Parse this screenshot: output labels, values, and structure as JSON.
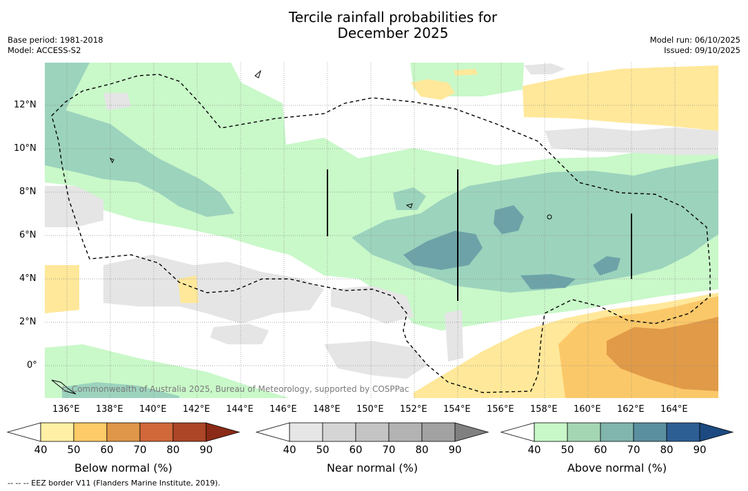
{
  "header": {
    "title_line1": "Tercile rainfall probabilities for",
    "title_line2": "December 2025",
    "base_period": "Base period: 1981-2018",
    "model": "Model: ACCESS-S2",
    "model_run": "Model run: 06/10/2025",
    "issued": "Issued: 09/10/2025"
  },
  "map": {
    "lat_labels": [
      "12°N",
      "10°N",
      "8°N",
      "6°N",
      "4°N",
      "2°N",
      "0°"
    ],
    "lon_labels": [
      "136°E",
      "138°E",
      "140°E",
      "142°E",
      "144°E",
      "146°E",
      "148°E",
      "150°E",
      "152°E",
      "154°E",
      "156°E",
      "158°E",
      "160°E",
      "162°E",
      "164°E"
    ],
    "copyright": "© Commonwealth of Australia 2025, Bureau of Meteorology, supported by COSPPac",
    "colors": {
      "ocean": "#ffffff",
      "above_50": "#c9f8c9",
      "above_60": "#9cd3bd",
      "above_70": "#6da3a8",
      "below_50": "#ffe89a",
      "below_60": "#fbc869",
      "below_70": "#e09a48",
      "near_50": "#e5e5e5"
    }
  },
  "colorbars": [
    {
      "label": "Below normal (%)",
      "ticks": [
        "40",
        "50",
        "60",
        "70",
        "80",
        "90"
      ],
      "colors": [
        "#fff0a6",
        "#fdcb67",
        "#e09648",
        "#d0683a",
        "#ac4627"
      ],
      "over_color": "#8b2a16"
    },
    {
      "label": "Near normal (%)",
      "ticks": [
        "40",
        "50",
        "60",
        "70",
        "80",
        "90"
      ],
      "colors": [
        "#e6e6e6",
        "#d5d5d5",
        "#c4c4c4",
        "#b3b3b3",
        "#a2a2a2"
      ],
      "over_color": "#808080"
    },
    {
      "label": "Above normal (%)",
      "ticks": [
        "40",
        "50",
        "60",
        "70",
        "80",
        "90"
      ],
      "colors": [
        "#c8f8c8",
        "#a5d6b3",
        "#80b6ad",
        "#5a8fa0",
        "#2d5e94"
      ],
      "over_color": "#1c4a80"
    }
  ],
  "footnote": "--  --  -- EEZ border V11 (Flanders Marine Institute, 2019)."
}
